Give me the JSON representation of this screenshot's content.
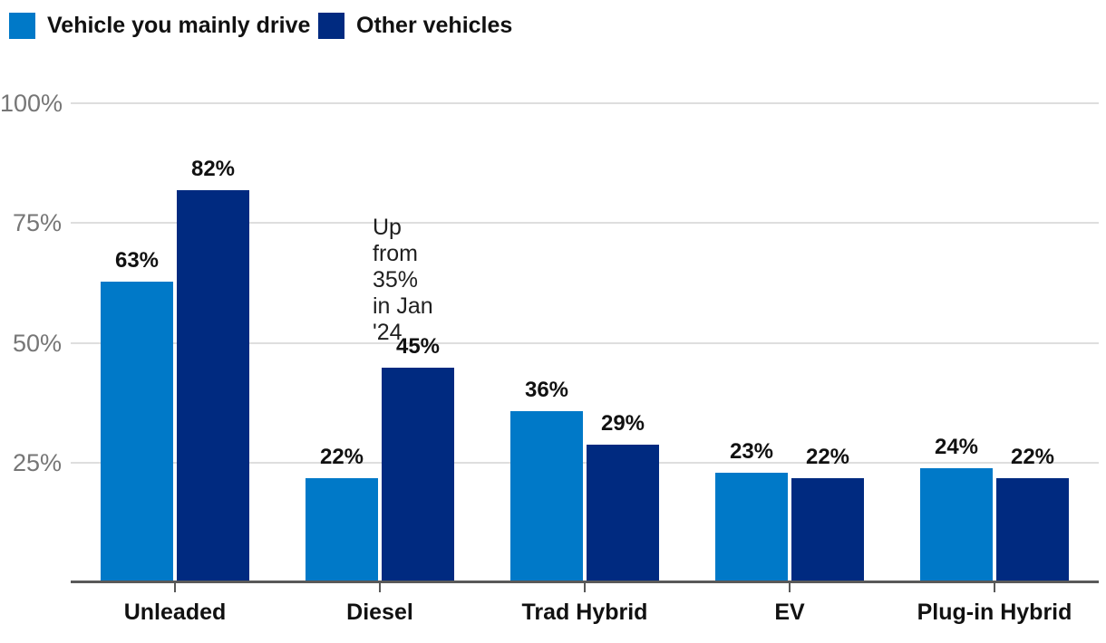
{
  "chart_data": {
    "type": "bar",
    "categories": [
      "Unleaded",
      "Diesel",
      "Trad Hybrid",
      "EV",
      "Plug-in Hybrid"
    ],
    "series": [
      {
        "name": "Vehicle you mainly drive",
        "color": "#0079C8",
        "values": [
          63,
          22,
          36,
          23,
          24
        ]
      },
      {
        "name": "Other vehicles",
        "color": "#002A80",
        "values": [
          82,
          45,
          29,
          22,
          22
        ]
      }
    ],
    "value_suffix": "%",
    "y_axis": {
      "ticks": [
        {
          "label": "100%",
          "value": 100
        },
        {
          "label": "75%",
          "value": 75
        },
        {
          "label": "50%",
          "value": 50
        },
        {
          "label": "25%",
          "value": 25
        }
      ],
      "range": [
        0,
        100
      ]
    },
    "grid": true,
    "legend_position": "top-left",
    "annotation": {
      "text": "Up from 35% in Jan '24",
      "lines": [
        "Up",
        "from",
        "35%",
        "in Jan",
        "'24"
      ],
      "refers_to": "Diesel Other vehicles 45%"
    }
  },
  "colors": {
    "series_main": "#0079C8",
    "series_other": "#002A80",
    "gridline": "#DEDEDE",
    "axis": "#595959",
    "y_label": "#767676",
    "label_text": "#111111",
    "annotation_text": "#1F1F1F",
    "background": "#FFFFFF"
  }
}
